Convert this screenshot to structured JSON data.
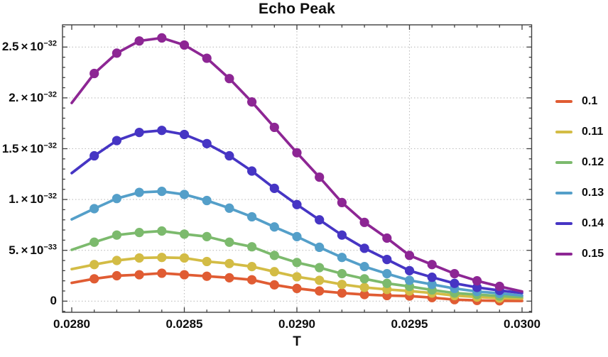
{
  "page": {
    "background": "#ffffff"
  },
  "chart_data": {
    "type": "line",
    "title": "Echo Peak",
    "xlabel": "T",
    "ylabel": "",
    "x": [
      0.028,
      0.0281,
      0.0282,
      0.0283,
      0.0284,
      0.0285,
      0.0286,
      0.0287,
      0.0288,
      0.0289,
      0.029,
      0.0291,
      0.0292,
      0.0293,
      0.0294,
      0.0295,
      0.0296,
      0.0297,
      0.0298,
      0.0299,
      0.03
    ],
    "xlim": [
      0.02796,
      0.03004
    ],
    "ylim_units_1e33": [
      -1.1,
      27.2
    ],
    "y_values_unit": "1e-33",
    "grid": {
      "style": "dotted",
      "x_values": [
        0.0285,
        0.029,
        0.0295
      ],
      "y_values_1e33": [
        0,
        5,
        10,
        15,
        20,
        25
      ]
    },
    "x_ticks": [
      {
        "v": 0.028,
        "label": "0.0280"
      },
      {
        "v": 0.0285,
        "label": "0.0285"
      },
      {
        "v": 0.029,
        "label": "0.0290"
      },
      {
        "v": 0.0295,
        "label": "0.0295"
      },
      {
        "v": 0.03,
        "label": "0.0300"
      }
    ],
    "x_minor_tick_step": 0.0001,
    "y_ticks": [
      {
        "v": 0,
        "mantissa": "0",
        "exp": null
      },
      {
        "v": 5,
        "mantissa": "5.",
        "exp": "−33"
      },
      {
        "v": 10,
        "mantissa": "1.",
        "exp": "−32"
      },
      {
        "v": 15,
        "mantissa": "1.5",
        "exp": "−32"
      },
      {
        "v": 20,
        "mantissa": "2.",
        "exp": "−32"
      },
      {
        "v": 25,
        "mantissa": "2.5",
        "exp": "−32"
      }
    ],
    "y_minor_tick_step_1e33": 1,
    "markers_span": {
      "first_index": 1,
      "last_index": 19
    },
    "legend_position": "right-outside",
    "series": [
      {
        "name": "0.1",
        "color": "#e05c33",
        "values": [
          1.8,
          2.2,
          2.5,
          2.6,
          2.75,
          2.6,
          2.45,
          2.3,
          2.1,
          1.6,
          1.25,
          1.0,
          0.8,
          0.65,
          0.55,
          0.5,
          0.35,
          0.15,
          0.07,
          0.03,
          0.02
        ]
      },
      {
        "name": "0.11",
        "color": "#d3bc45",
        "values": [
          3.15,
          3.6,
          4.0,
          4.25,
          4.3,
          4.25,
          3.9,
          3.7,
          3.4,
          2.9,
          2.4,
          2.05,
          1.65,
          1.35,
          1.15,
          1.0,
          0.8,
          0.55,
          0.4,
          0.3,
          0.25
        ]
      },
      {
        "name": "0.12",
        "color": "#7cba6d",
        "values": [
          5.05,
          5.8,
          6.5,
          6.75,
          6.9,
          6.6,
          6.35,
          5.8,
          5.35,
          4.5,
          3.8,
          3.3,
          2.7,
          2.2,
          1.75,
          1.45,
          1.1,
          0.8,
          0.65,
          0.5,
          0.4
        ]
      },
      {
        "name": "0.13",
        "color": "#549fc9",
        "values": [
          8.05,
          9.1,
          10.1,
          10.7,
          10.8,
          10.5,
          9.9,
          9.15,
          8.3,
          7.3,
          6.35,
          5.3,
          4.3,
          3.4,
          2.7,
          2.05,
          1.65,
          1.25,
          0.95,
          0.77,
          0.55
        ]
      },
      {
        "name": "0.14",
        "color": "#4635c4",
        "values": [
          12.6,
          14.3,
          15.8,
          16.6,
          16.8,
          16.4,
          15.5,
          14.3,
          12.8,
          11.1,
          9.5,
          8.0,
          6.5,
          5.2,
          4.1,
          3.0,
          2.35,
          1.75,
          1.35,
          1.05,
          0.8
        ]
      },
      {
        "name": "0.15",
        "color": "#8d2694",
        "values": [
          19.5,
          22.4,
          24.4,
          25.6,
          25.9,
          25.2,
          23.9,
          21.9,
          19.6,
          17.1,
          14.6,
          12.2,
          9.7,
          7.75,
          6.2,
          4.5,
          3.6,
          2.7,
          2.0,
          1.45,
          0.95
        ]
      }
    ],
    "colors": {
      "frame": "#3f3f3f",
      "grid": "#bdbdbd",
      "text": "#0d0d0d"
    }
  }
}
